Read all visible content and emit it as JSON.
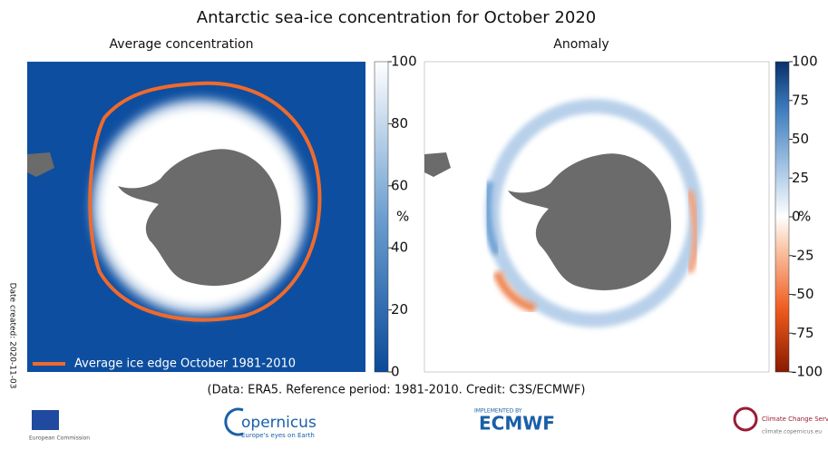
{
  "title": "Antarctic sea-ice concentration for October 2020",
  "left_panel": {
    "subtitle": "Average concentration",
    "legend": "Average ice edge October 1981-2010",
    "colorbar": {
      "lim": [
        0,
        100
      ],
      "ticks": [
        0,
        20,
        40,
        60,
        80,
        100
      ],
      "unit": "%"
    }
  },
  "right_panel": {
    "subtitle": "Anomaly",
    "colorbar": {
      "lim": [
        -100,
        100
      ],
      "ticks": [
        -100,
        -75,
        -50,
        -25,
        0,
        25,
        50,
        75,
        100
      ],
      "unit": "%"
    }
  },
  "date_created": "Date created: 2020-11-03",
  "credit": "(Data: ERA5.  Reference period: 1981-2010.  Credit: C3S/ECMWF)",
  "logos": {
    "commission": "European Commission",
    "copernicus": "opernicus",
    "copernicus_tagline": "Europe's eyes on Earth",
    "implemented": "IMPLEMENTED BY",
    "ecmwf": "ECMWF",
    "c3s": "Climate Change Service",
    "c3s_url": "climate.copernicus.eu"
  }
}
